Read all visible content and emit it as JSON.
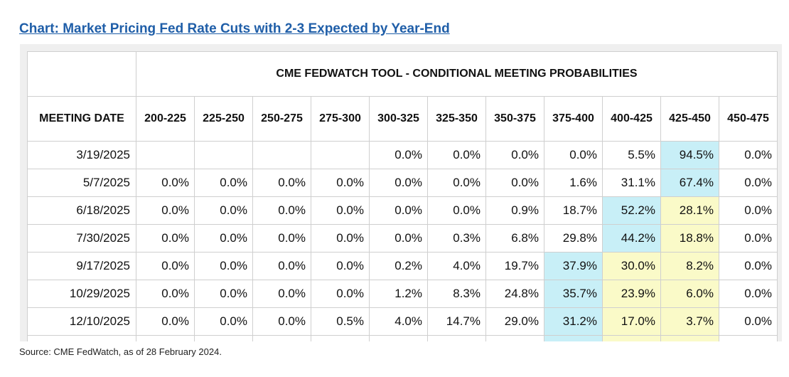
{
  "link_title": "Chart: Market Pricing Fed Rate Cuts with 2-3 Expected by Year-End",
  "source_note": "Source: CME FedWatch, as of 28 February 2024.",
  "colors": {
    "link": "#1f5ea8",
    "blue_highlight": "#c8eff7",
    "yellow_highlight": "#fafac8",
    "frame": "#efefef"
  },
  "chart_data": {
    "type": "table",
    "title": "CME FEDWATCH TOOL - CONDITIONAL MEETING PROBABILITIES",
    "columns": [
      "MEETING DATE",
      "200-225",
      "225-250",
      "250-275",
      "275-300",
      "300-325",
      "325-350",
      "350-375",
      "375-400",
      "400-425",
      "425-450",
      "450-475"
    ],
    "rows": [
      [
        "3/19/2025",
        "",
        "",
        "",
        "",
        "0.0%",
        "0.0%",
        "0.0%",
        "0.0%",
        "5.5%",
        "94.5%",
        "0.0%"
      ],
      [
        "5/7/2025",
        "0.0%",
        "0.0%",
        "0.0%",
        "0.0%",
        "0.0%",
        "0.0%",
        "0.0%",
        "1.6%",
        "31.1%",
        "67.4%",
        "0.0%"
      ],
      [
        "6/18/2025",
        "0.0%",
        "0.0%",
        "0.0%",
        "0.0%",
        "0.0%",
        "0.0%",
        "0.9%",
        "18.7%",
        "52.2%",
        "28.1%",
        "0.0%"
      ],
      [
        "7/30/2025",
        "0.0%",
        "0.0%",
        "0.0%",
        "0.0%",
        "0.0%",
        "0.3%",
        "6.8%",
        "29.8%",
        "44.2%",
        "18.8%",
        "0.0%"
      ],
      [
        "9/17/2025",
        "0.0%",
        "0.0%",
        "0.0%",
        "0.0%",
        "0.2%",
        "4.0%",
        "19.7%",
        "37.9%",
        "30.0%",
        "8.2%",
        "0.0%"
      ],
      [
        "10/29/2025",
        "0.0%",
        "0.0%",
        "0.0%",
        "0.0%",
        "1.2%",
        "8.3%",
        "24.8%",
        "35.7%",
        "23.9%",
        "6.0%",
        "0.0%"
      ],
      [
        "12/10/2025",
        "0.0%",
        "0.0%",
        "0.0%",
        "0.5%",
        "4.0%",
        "14.7%",
        "29.0%",
        "31.2%",
        "17.0%",
        "3.7%",
        "0.0%"
      ]
    ],
    "highlights": [
      [
        "",
        "",
        "",
        "",
        "",
        "",
        "",
        "",
        "",
        "",
        "blue",
        ""
      ],
      [
        "",
        "",
        "",
        "",
        "",
        "",
        "",
        "",
        "",
        "",
        "blue",
        ""
      ],
      [
        "",
        "",
        "",
        "",
        "",
        "",
        "",
        "",
        "",
        "blue",
        "yellow",
        ""
      ],
      [
        "",
        "",
        "",
        "",
        "",
        "",
        "",
        "",
        "",
        "blue",
        "yellow",
        ""
      ],
      [
        "",
        "",
        "",
        "",
        "",
        "",
        "",
        "",
        "blue",
        "yellow",
        "yellow",
        ""
      ],
      [
        "",
        "",
        "",
        "",
        "",
        "",
        "",
        "",
        "blue",
        "yellow",
        "yellow",
        ""
      ],
      [
        "",
        "",
        "",
        "",
        "",
        "",
        "",
        "",
        "blue",
        "yellow",
        "yellow",
        ""
      ]
    ],
    "partial_row_highlights": [
      "",
      "",
      "",
      "",
      "",
      "",
      "",
      "",
      "blue",
      "yellow",
      "yellow",
      ""
    ]
  }
}
